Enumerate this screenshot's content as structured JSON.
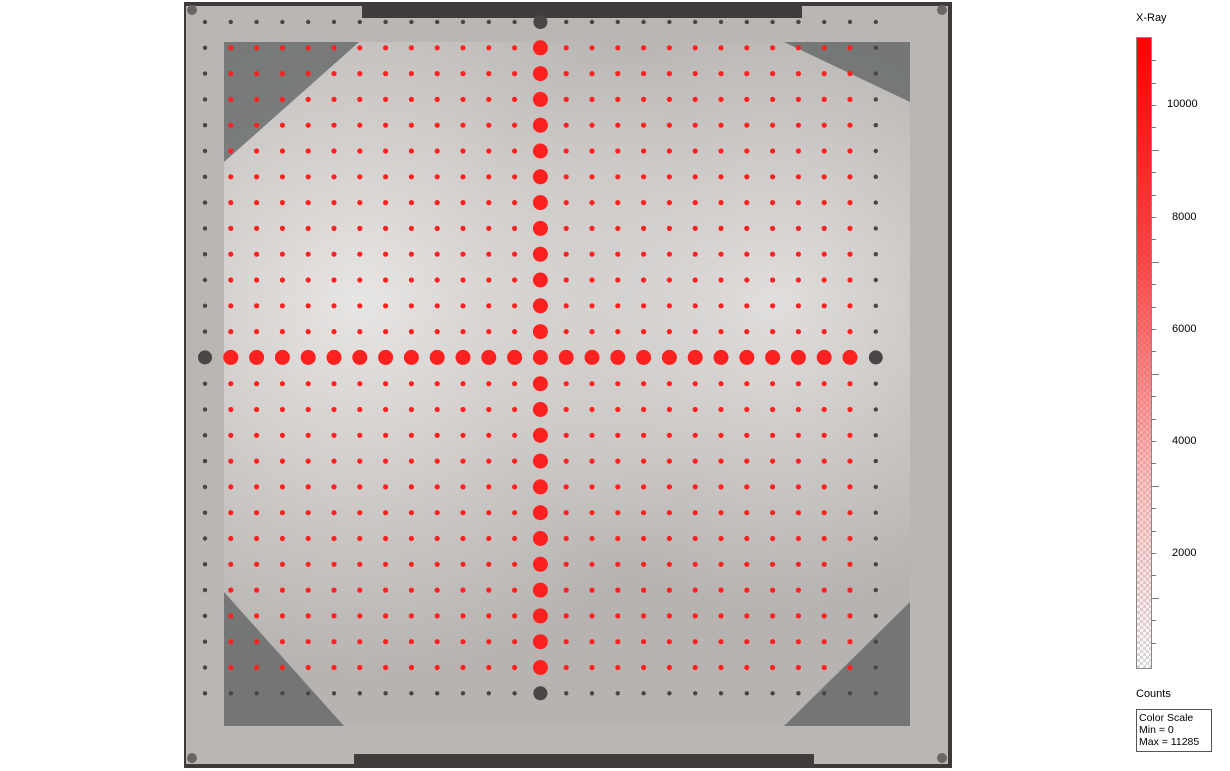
{
  "viewer": {
    "modality": "X-Ray",
    "grid": {
      "rows": 27,
      "cols": 27,
      "center_index": 13
    },
    "colors": {
      "overlay": "#ff2020",
      "background": "#3e3a3a",
      "plate": "#bdbab8"
    }
  },
  "legend": {
    "title": "X-Ray",
    "ticks": [
      "10000",
      "8000",
      "6000",
      "4000",
      "2000"
    ],
    "units": "Counts",
    "color_scale": {
      "header": "Color Scale",
      "min_label": "Min = 0",
      "max_label": "Max = 11285",
      "min": 0,
      "max": 11285
    }
  }
}
